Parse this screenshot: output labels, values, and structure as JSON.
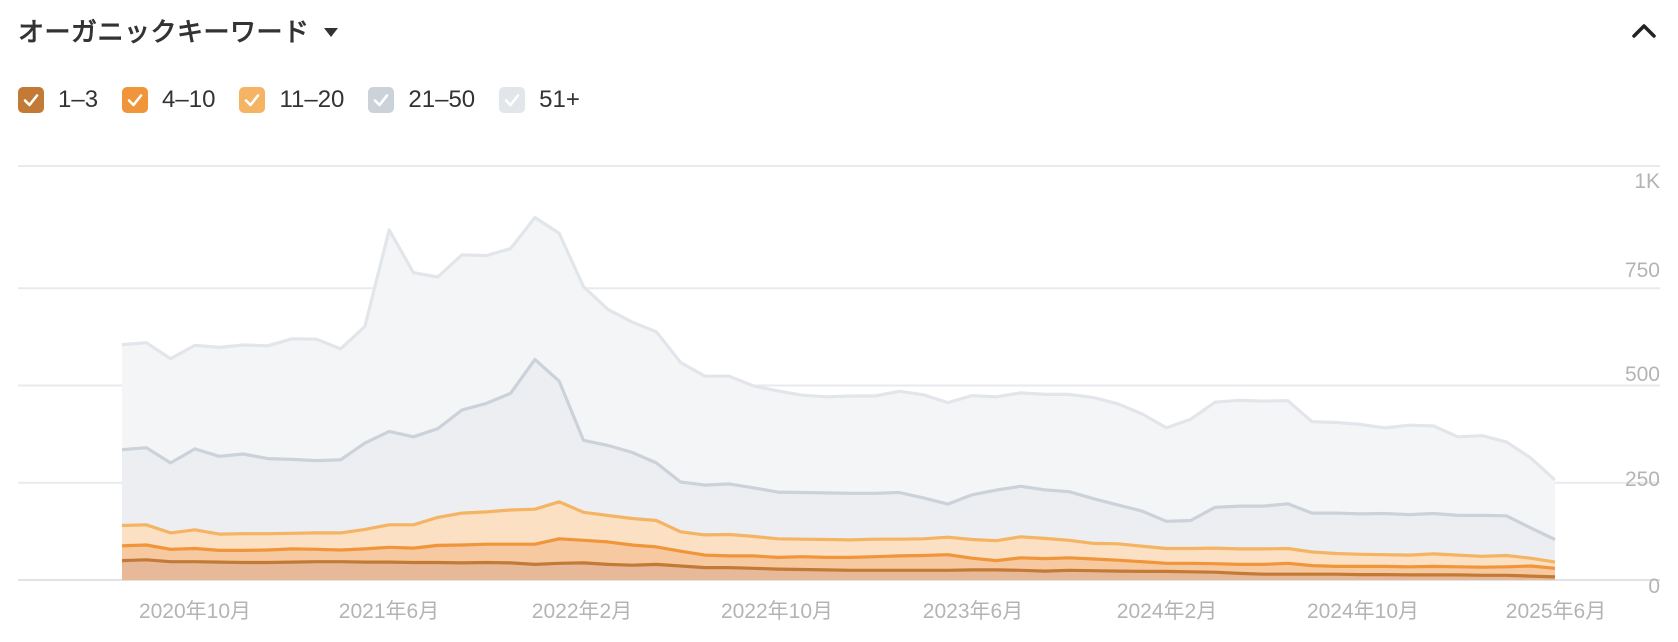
{
  "header": {
    "title": "オーガニックキーワード",
    "dropdown_icon": "caret-down-icon",
    "collapse_icon": "chevron-up-icon"
  },
  "colors": {
    "band_1_3": "#c47a37",
    "band_4_10": "#f0953a",
    "band_11_20": "#f4b463",
    "band_21_50": "#ccd2d9",
    "band_51_plus": "#e2e5ea",
    "check_mark": "#ffffff"
  },
  "legend": [
    {
      "label": "1–3",
      "checked": true,
      "color": "#c47a37"
    },
    {
      "label": "4–10",
      "checked": true,
      "color": "#f0953a"
    },
    {
      "label": "11–20",
      "checked": true,
      "color": "#f4b463"
    },
    {
      "label": "21–50",
      "checked": true,
      "color": "#ccd2d9"
    },
    {
      "label": "51+",
      "checked": true,
      "color": "#e2e5ea"
    }
  ],
  "chart_data": {
    "type": "area",
    "stacked": true,
    "x": [
      "2020-07",
      "2020-08",
      "2020-09",
      "2020-10",
      "2020-11",
      "2020-12",
      "2021-01",
      "2021-02",
      "2021-03",
      "2021-04",
      "2021-05",
      "2021-06",
      "2021-07",
      "2021-08",
      "2021-09",
      "2021-10",
      "2021-11",
      "2021-12",
      "2022-01",
      "2022-02",
      "2022-03",
      "2022-04",
      "2022-05",
      "2022-06",
      "2022-07",
      "2022-08",
      "2022-09",
      "2022-10",
      "2022-11",
      "2022-12",
      "2023-01",
      "2023-02",
      "2023-03",
      "2023-04",
      "2023-05",
      "2023-06",
      "2023-07",
      "2023-08",
      "2023-09",
      "2023-10",
      "2023-11",
      "2023-12",
      "2024-01",
      "2024-02",
      "2024-03",
      "2024-04",
      "2024-05",
      "2024-06",
      "2024-07",
      "2024-08",
      "2024-09",
      "2024-10",
      "2024-11",
      "2024-12",
      "2025-01",
      "2025-02",
      "2025-03",
      "2025-04",
      "2025-05",
      "2025-06"
    ],
    "x_tick_labels": [
      "2020年10月",
      "2021年6月",
      "2022年2月",
      "2022年10月",
      "2023年6月",
      "2024年2月",
      "2024年10月",
      "2025年6月"
    ],
    "y_ticks": [
      0,
      250,
      500,
      750,
      "1K"
    ],
    "ylim": [
      0,
      1000
    ],
    "series": [
      {
        "name": "1–3",
        "values": [
          50,
          52,
          47,
          47,
          46,
          45,
          45,
          46,
          47,
          47,
          46,
          46,
          45,
          45,
          44,
          45,
          44,
          40,
          43,
          44,
          40,
          38,
          40,
          36,
          32,
          32,
          30,
          28,
          27,
          26,
          25,
          25,
          25,
          25,
          25,
          26,
          26,
          25,
          23,
          25,
          24,
          23,
          22,
          22,
          21,
          20,
          17,
          15,
          15,
          15,
          15,
          14,
          14,
          13,
          13,
          13,
          12,
          12,
          10,
          8
        ]
      },
      {
        "name": "4–10",
        "values": [
          38,
          38,
          32,
          34,
          30,
          31,
          32,
          34,
          32,
          30,
          34,
          38,
          37,
          44,
          46,
          47,
          48,
          52,
          63,
          58,
          58,
          52,
          45,
          38,
          32,
          30,
          32,
          30,
          33,
          32,
          33,
          35,
          37,
          38,
          40,
          30,
          24,
          32,
          32,
          32,
          30,
          28,
          25,
          21,
          22,
          22,
          23,
          25,
          28,
          22,
          20,
          21,
          21,
          21,
          22,
          21,
          21,
          22,
          26,
          22
        ]
      },
      {
        "name": "11–20",
        "values": [
          52,
          52,
          42,
          48,
          42,
          43,
          42,
          40,
          42,
          44,
          50,
          58,
          60,
          72,
          82,
          83,
          88,
          90,
          95,
          72,
          68,
          68,
          68,
          50,
          52,
          55,
          50,
          48,
          45,
          46,
          45,
          45,
          43,
          43,
          45,
          48,
          51,
          54,
          52,
          45,
          40,
          42,
          40,
          38,
          38,
          40,
          40,
          40,
          38,
          35,
          33,
          31,
          30,
          30,
          32,
          30,
          28,
          29,
          20,
          16
        ]
      },
      {
        "name": "21–50",
        "values": [
          195,
          198,
          180,
          208,
          200,
          205,
          193,
          190,
          186,
          188,
          222,
          240,
          226,
          228,
          265,
          279,
          300,
          385,
          310,
          185,
          180,
          170,
          148,
          128,
          128,
          130,
          125,
          120,
          120,
          120,
          120,
          118,
          120,
          105,
          85,
          115,
          130,
          130,
          125,
          125,
          115,
          100,
          90,
          70,
          72,
          105,
          110,
          110,
          115,
          100,
          104,
          104,
          106,
          104,
          104,
          102,
          105,
          102,
          78,
          58
        ]
      },
      {
        "name": "51+",
        "values": [
          270,
          270,
          268,
          266,
          280,
          280,
          290,
          310,
          312,
          285,
          300,
          518,
          422,
          390,
          399,
          380,
          372,
          365,
          380,
          395,
          350,
          335,
          337,
          307,
          280,
          277,
          262,
          260,
          250,
          247,
          250,
          250,
          260,
          265,
          261,
          255,
          240,
          240,
          245,
          250,
          260,
          260,
          250,
          240,
          260,
          270,
          272,
          270,
          265,
          235,
          233,
          230,
          220,
          230,
          225,
          202,
          205,
          190,
          180,
          153
        ]
      }
    ]
  }
}
